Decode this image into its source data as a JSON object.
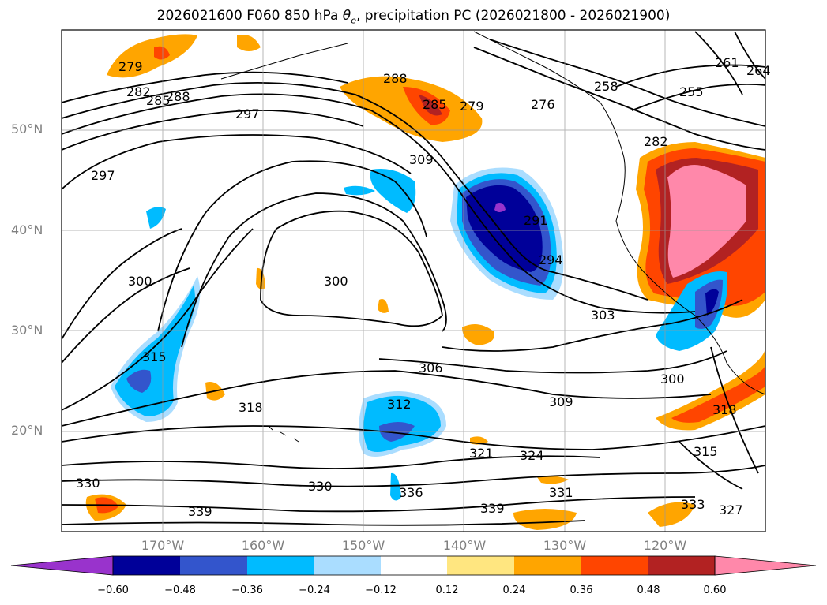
{
  "title": "2026021600 F060 850 hPa θe, precipitation PC (2026021800 - 2026021900)",
  "title_parts": {
    "prefix": "2026021600 F060 850 hPa ",
    "theta": "θ",
    "sub": "e",
    "suffix": ", precipitation PC (2026021800 - 2026021900)"
  },
  "map": {
    "lon_range": [
      -180,
      -110
    ],
    "lat_range": [
      10,
      60
    ],
    "lat_ticks": [
      "50°N",
      "40°N",
      "30°N",
      "20°N"
    ],
    "lon_ticks": [
      "170°W",
      "160°W",
      "150°W",
      "140°W",
      "130°W",
      "120°W"
    ],
    "gridlines": true
  },
  "contour_labels": [
    "279",
    "282",
    "285",
    "288",
    "288",
    "285",
    "279",
    "276",
    "258",
    "261",
    "264",
    "255",
    "297",
    "297",
    "309",
    "291",
    "294",
    "282",
    "300",
    "300",
    "303",
    "306",
    "309",
    "312",
    "318",
    "300",
    "318",
    "315",
    "321",
    "324",
    "330",
    "336",
    "339",
    "339",
    "330",
    "333",
    "327",
    "331",
    "315"
  ],
  "colorbar": {
    "colors": [
      "#9933cc",
      "#000099",
      "#3355cc",
      "#00bbff",
      "#aaddff",
      "#ffffff",
      "#ffe680",
      "#ffa500",
      "#ff4500",
      "#b22222",
      "#ff88aa"
    ],
    "labels": [
      "−0.60",
      "−0.48",
      "−0.36",
      "−0.24",
      "−0.12",
      "0.12",
      "0.24",
      "0.36",
      "0.48",
      "0.60"
    ],
    "extend": "both"
  },
  "chart_data": {
    "type": "map",
    "fields": [
      "850 hPa θe contours (K)",
      "precipitation PC shading"
    ],
    "valid_window": "2026021800 - 2026021900",
    "init": "2026021600",
    "forecast_hour": "F060"
  }
}
